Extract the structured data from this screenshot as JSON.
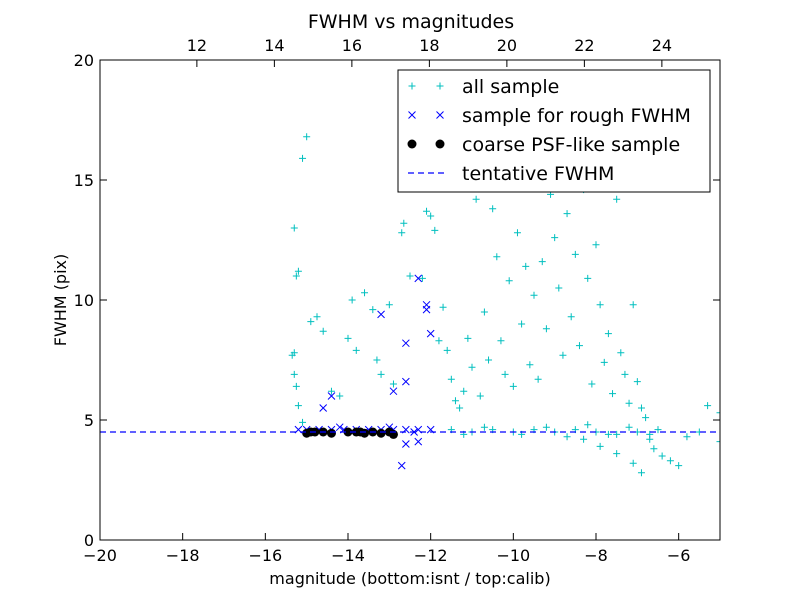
{
  "colors": {
    "all_sample": "#00bfbf",
    "rough_sample": "#0000ff",
    "psf_sample": "#000000",
    "tentative_line": "#0000ff"
  },
  "chart_data": {
    "type": "scatter",
    "title": "FWHM vs magnitudes",
    "xlabel": "magnitude (bottom:isnt / top:calib)",
    "ylabel": "FWHM (pix)",
    "xlim": [
      -20,
      -5
    ],
    "ylim": [
      0,
      20
    ],
    "top_xlim": [
      9.5,
      25.5
    ],
    "x_ticks": [
      "−20",
      "−18",
      "−16",
      "−14",
      "−12",
      "−10",
      "−8",
      "−6"
    ],
    "x_tick_values": [
      -20,
      -18,
      -16,
      -14,
      -12,
      -10,
      -8,
      -6
    ],
    "top_x_ticks": [
      "12",
      "14",
      "16",
      "18",
      "20",
      "22",
      "24"
    ],
    "top_x_tick_values": [
      12,
      14,
      16,
      18,
      20,
      22,
      24
    ],
    "y_ticks": [
      "0",
      "5",
      "10",
      "15",
      "20"
    ],
    "y_tick_values": [
      0,
      5,
      10,
      15,
      20
    ],
    "grid": false,
    "legend_position": "top-right",
    "legend": [
      {
        "label": "all sample",
        "marker": "plus",
        "color": "#00bfbf"
      },
      {
        "label": "sample for rough FWHM",
        "marker": "x",
        "color": "#0000ff"
      },
      {
        "label": "coarse PSF-like sample",
        "marker": "circle",
        "color": "#000000"
      },
      {
        "label": "tentative FWHM",
        "marker": "dashed-line",
        "color": "#0000ff"
      }
    ],
    "tentative_fwhm": 4.5,
    "series": [
      {
        "name": "all sample",
        "marker": "plus",
        "points": [
          [
            -15.0,
            16.8
          ],
          [
            -15.1,
            15.9
          ],
          [
            -15.3,
            13.0
          ],
          [
            -15.2,
            11.2
          ],
          [
            -15.25,
            11.0
          ],
          [
            -15.3,
            7.8
          ],
          [
            -15.35,
            7.7
          ],
          [
            -15.3,
            6.9
          ],
          [
            -15.25,
            6.4
          ],
          [
            -15.2,
            5.6
          ],
          [
            -15.1,
            4.9
          ],
          [
            -14.9,
            9.1
          ],
          [
            -14.75,
            9.3
          ],
          [
            -14.6,
            8.7
          ],
          [
            -14.4,
            6.2
          ],
          [
            -14.2,
            6.0
          ],
          [
            -14.0,
            8.4
          ],
          [
            -13.9,
            10.0
          ],
          [
            -13.8,
            7.9
          ],
          [
            -13.6,
            10.3
          ],
          [
            -13.4,
            9.6
          ],
          [
            -13.3,
            7.5
          ],
          [
            -13.2,
            6.9
          ],
          [
            -13.0,
            9.8
          ],
          [
            -12.9,
            6.5
          ],
          [
            -12.7,
            12.8
          ],
          [
            -12.65,
            13.2
          ],
          [
            -12.5,
            11.0
          ],
          [
            -12.2,
            10.9
          ],
          [
            -12.1,
            13.7
          ],
          [
            -12.0,
            13.5
          ],
          [
            -11.9,
            12.9
          ],
          [
            -11.8,
            8.3
          ],
          [
            -11.7,
            9.7
          ],
          [
            -11.6,
            7.9
          ],
          [
            -11.5,
            6.7
          ],
          [
            -11.4,
            5.8
          ],
          [
            -11.3,
            5.5
          ],
          [
            -11.2,
            6.2
          ],
          [
            -11.1,
            8.4
          ],
          [
            -11.0,
            7.2
          ],
          [
            -10.9,
            14.2
          ],
          [
            -10.8,
            6.0
          ],
          [
            -10.7,
            9.5
          ],
          [
            -10.6,
            7.5
          ],
          [
            -10.5,
            13.8
          ],
          [
            -10.4,
            11.8
          ],
          [
            -10.3,
            8.3
          ],
          [
            -10.2,
            6.9
          ],
          [
            -10.1,
            10.8
          ],
          [
            -10.0,
            6.4
          ],
          [
            -9.9,
            12.8
          ],
          [
            -9.8,
            9.0
          ],
          [
            -9.7,
            11.4
          ],
          [
            -9.6,
            7.3
          ],
          [
            -9.5,
            10.2
          ],
          [
            -9.4,
            6.7
          ],
          [
            -9.3,
            11.6
          ],
          [
            -9.2,
            8.8
          ],
          [
            -9.1,
            14.4
          ],
          [
            -9.0,
            12.6
          ],
          [
            -8.9,
            10.5
          ],
          [
            -8.8,
            7.7
          ],
          [
            -8.7,
            13.6
          ],
          [
            -8.6,
            9.3
          ],
          [
            -8.5,
            11.9
          ],
          [
            -8.4,
            8.1
          ],
          [
            -8.3,
            14.6
          ],
          [
            -8.2,
            10.9
          ],
          [
            -8.1,
            6.5
          ],
          [
            -8.0,
            12.3
          ],
          [
            -7.9,
            9.8
          ],
          [
            -7.8,
            7.4
          ],
          [
            -7.7,
            8.6
          ],
          [
            -7.6,
            6.1
          ],
          [
            -7.5,
            14.2
          ],
          [
            -7.4,
            7.8
          ],
          [
            -7.3,
            6.9
          ],
          [
            -7.2,
            5.7
          ],
          [
            -7.1,
            9.8
          ],
          [
            -7.0,
            6.6
          ],
          [
            -6.9,
            5.5
          ],
          [
            -6.8,
            5.1
          ],
          [
            -6.7,
            4.2
          ],
          [
            -6.6,
            3.8
          ],
          [
            -6.4,
            3.5
          ],
          [
            -6.2,
            3.3
          ],
          [
            -6.0,
            3.1
          ],
          [
            -5.8,
            4.3
          ],
          [
            -5.5,
            4.5
          ],
          [
            -5.3,
            5.6
          ],
          [
            -5.0,
            5.3
          ],
          [
            -5.0,
            4.1
          ],
          [
            -6.9,
            2.8
          ],
          [
            -7.1,
            3.2
          ],
          [
            -7.5,
            3.6
          ],
          [
            -7.9,
            3.9
          ],
          [
            -8.3,
            4.2
          ],
          [
            -11.5,
            4.6
          ],
          [
            -11.0,
            4.5
          ],
          [
            -10.5,
            4.6
          ],
          [
            -10.0,
            4.5
          ],
          [
            -9.5,
            4.6
          ],
          [
            -9.0,
            4.5
          ],
          [
            -8.5,
            4.6
          ],
          [
            -8.0,
            4.5
          ],
          [
            -7.5,
            4.4
          ],
          [
            -7.0,
            4.5
          ],
          [
            -6.5,
            4.6
          ],
          [
            -11.2,
            4.4
          ],
          [
            -10.7,
            4.7
          ],
          [
            -9.8,
            4.4
          ],
          [
            -9.2,
            4.7
          ],
          [
            -8.7,
            4.3
          ],
          [
            -8.2,
            4.8
          ],
          [
            -7.7,
            4.4
          ],
          [
            -7.2,
            4.7
          ],
          [
            -6.7,
            4.4
          ]
        ]
      },
      {
        "name": "sample for rough FWHM",
        "marker": "x",
        "points": [
          [
            -14.4,
            6.0
          ],
          [
            -14.6,
            5.5
          ],
          [
            -13.2,
            9.4
          ],
          [
            -12.9,
            6.2
          ],
          [
            -12.6,
            8.2
          ],
          [
            -12.6,
            6.6
          ],
          [
            -12.3,
            10.9
          ],
          [
            -12.1,
            9.8
          ],
          [
            -12.1,
            9.6
          ],
          [
            -12.0,
            8.6
          ],
          [
            -12.7,
            3.1
          ],
          [
            -12.6,
            4.0
          ],
          [
            -12.3,
            4.1
          ],
          [
            -15.2,
            4.6
          ],
          [
            -15.0,
            4.6
          ],
          [
            -14.7,
            4.6
          ],
          [
            -14.4,
            4.6
          ],
          [
            -14.1,
            4.6
          ],
          [
            -13.8,
            4.6
          ],
          [
            -13.5,
            4.6
          ],
          [
            -13.2,
            4.6
          ],
          [
            -12.9,
            4.6
          ],
          [
            -12.6,
            4.6
          ],
          [
            -12.3,
            4.6
          ],
          [
            -12.0,
            4.6
          ],
          [
            -14.9,
            4.5
          ],
          [
            -14.2,
            4.7
          ],
          [
            -13.6,
            4.5
          ],
          [
            -13.0,
            4.7
          ],
          [
            -12.4,
            4.5
          ]
        ]
      },
      {
        "name": "coarse PSF-like sample",
        "marker": "circle",
        "points": [
          [
            -15.0,
            4.45
          ],
          [
            -14.8,
            4.5
          ],
          [
            -14.6,
            4.5
          ],
          [
            -14.4,
            4.45
          ],
          [
            -14.0,
            4.5
          ],
          [
            -13.8,
            4.5
          ],
          [
            -13.6,
            4.45
          ],
          [
            -13.4,
            4.5
          ],
          [
            -13.2,
            4.45
          ],
          [
            -12.9,
            4.4
          ],
          [
            -13.0,
            4.5
          ],
          [
            -14.9,
            4.5
          ],
          [
            -13.7,
            4.5
          ]
        ]
      }
    ]
  }
}
